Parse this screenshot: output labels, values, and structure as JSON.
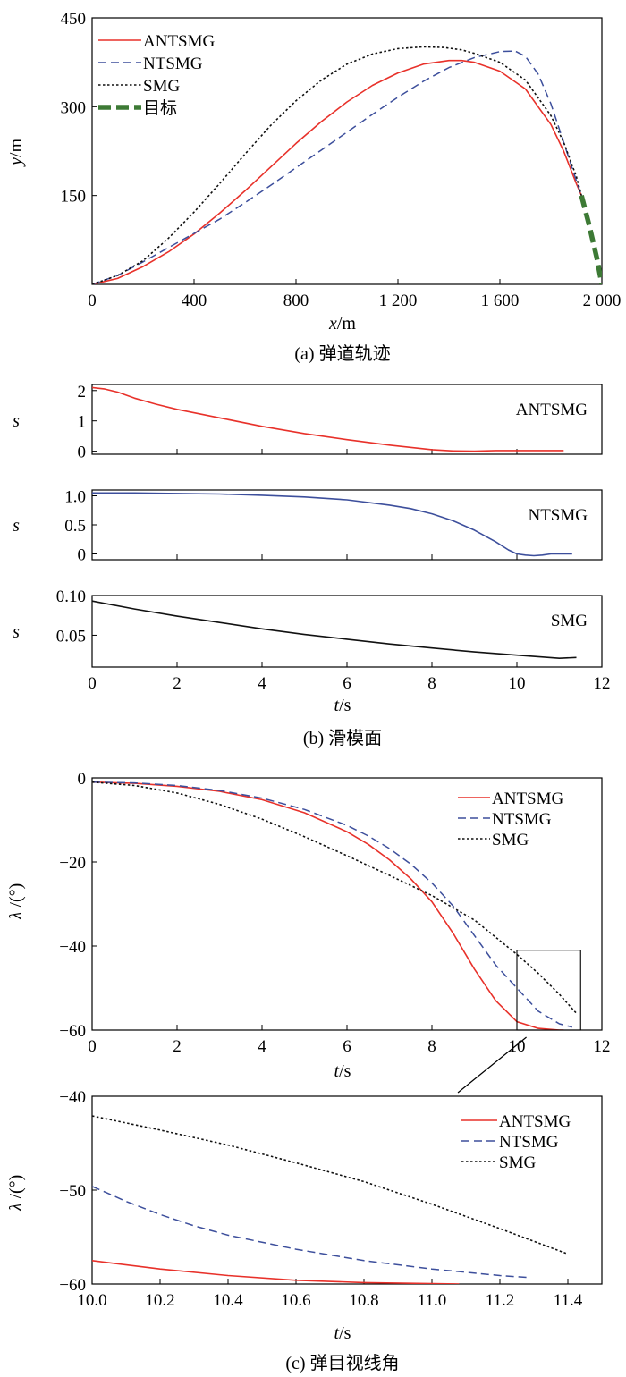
{
  "captions": {
    "a": "(a) 弹道轨迹",
    "b": "(b) 滑模面",
    "c": "(c) 弹目视线角"
  },
  "axis_text": {
    "x_var": "x",
    "x_unit": "/m",
    "y_var": "y",
    "y_unit": "/m",
    "s_var": "s",
    "t_var": "t",
    "t_unit": "/s",
    "lambda_var": "λ",
    "lambda_unit": " /(°)"
  },
  "colors": {
    "ANTSMG": "#e8312a",
    "NTSMG": "#3d4f9c",
    "SMG": "#111111",
    "target": "#3d7a35"
  },
  "chart_data": [
    {
      "id": "a",
      "type": "line",
      "title": "(a) 弹道轨迹",
      "xlabel": "x/m",
      "ylabel": "y/m",
      "xlim": [
        0,
        2000
      ],
      "ylim": [
        0,
        450
      ],
      "xticks": [
        0,
        400,
        800,
        1200,
        1600,
        2000
      ],
      "xtick_labels": [
        "0",
        "400",
        "800",
        "1 200",
        "1 600",
        "2 000"
      ],
      "yticks": [
        150,
        300,
        450
      ],
      "ytick_labels": [
        "150",
        "300",
        "450"
      ],
      "legend": "top-left",
      "series": [
        {
          "name": "ANTSMG",
          "style": "solid",
          "x": [
            0,
            100,
            200,
            300,
            400,
            500,
            600,
            700,
            800,
            900,
            1000,
            1100,
            1200,
            1300,
            1400,
            1450,
            1500,
            1600,
            1700,
            1800,
            1850,
            1900,
            1920
          ],
          "y": [
            0,
            10,
            30,
            55,
            85,
            120,
            158,
            198,
            238,
            275,
            308,
            336,
            357,
            372,
            378,
            378,
            375,
            360,
            330,
            270,
            225,
            170,
            150
          ]
        },
        {
          "name": "NTSMG",
          "style": "dashed",
          "x": [
            0,
            100,
            200,
            300,
            400,
            500,
            600,
            700,
            800,
            900,
            1000,
            1100,
            1200,
            1300,
            1400,
            1500,
            1600,
            1660,
            1700,
            1750,
            1800,
            1850,
            1900,
            1920
          ],
          "y": [
            0,
            15,
            38,
            62,
            86,
            110,
            138,
            167,
            197,
            227,
            257,
            287,
            316,
            343,
            366,
            383,
            393,
            394,
            385,
            355,
            305,
            240,
            175,
            150
          ]
        },
        {
          "name": "SMG",
          "style": "dotted",
          "x": [
            0,
            100,
            200,
            300,
            400,
            500,
            600,
            700,
            800,
            900,
            1000,
            1100,
            1200,
            1300,
            1380,
            1450,
            1500,
            1600,
            1700,
            1800,
            1850,
            1900,
            1920
          ],
          "y": [
            0,
            15,
            40,
            78,
            122,
            170,
            220,
            268,
            310,
            345,
            372,
            389,
            398,
            401,
            400,
            396,
            390,
            375,
            345,
            285,
            240,
            182,
            150
          ]
        },
        {
          "name": "目标",
          "style": "thick-dashed",
          "x": [
            1920,
            1950,
            1980,
            2000
          ],
          "y": [
            150,
            100,
            45,
            0
          ]
        }
      ]
    },
    {
      "id": "b1",
      "type": "line",
      "xlabel": "",
      "ylabel": "s",
      "xlim": [
        0,
        12
      ],
      "ylim": [
        -0.1,
        2.2
      ],
      "yticks": [
        0,
        1,
        2
      ],
      "ytick_labels": [
        "0",
        "1",
        "2"
      ],
      "annotation": "ANTSMG",
      "series": [
        {
          "name": "ANTSMG",
          "x": [
            0,
            0.3,
            0.6,
            1,
            1.5,
            2,
            3,
            4,
            5,
            6,
            7,
            8,
            8.5,
            9,
            9.5,
            10,
            11.1
          ],
          "y": [
            2.1,
            2.05,
            1.95,
            1.75,
            1.55,
            1.38,
            1.1,
            0.82,
            0.58,
            0.38,
            0.2,
            0.05,
            0.01,
            0,
            0.02,
            0.02,
            0.02
          ]
        }
      ]
    },
    {
      "id": "b2",
      "type": "line",
      "xlabel": "",
      "ylabel": "s",
      "xlim": [
        0,
        12
      ],
      "ylim": [
        -0.1,
        1.1
      ],
      "yticks": [
        0,
        0.5,
        1.0
      ],
      "ytick_labels": [
        "0",
        "0.5",
        "1.0"
      ],
      "annotation": "NTSMG",
      "series": [
        {
          "name": "NTSMG",
          "x": [
            0,
            1,
            2,
            3,
            4,
            5,
            6,
            7,
            7.5,
            8,
            8.5,
            9,
            9.5,
            9.8,
            10,
            10.2,
            10.4,
            10.6,
            10.8,
            11,
            11.3
          ],
          "y": [
            1.05,
            1.05,
            1.04,
            1.03,
            1.01,
            0.98,
            0.93,
            0.84,
            0.78,
            0.69,
            0.57,
            0.41,
            0.21,
            0.07,
            0.0,
            -0.02,
            -0.03,
            -0.02,
            0.0,
            0.0,
            0.0
          ]
        }
      ]
    },
    {
      "id": "b3",
      "type": "line",
      "xlabel": "t/s",
      "ylabel": "s",
      "xlim": [
        0,
        12
      ],
      "ylim": [
        0.01,
        0.1
      ],
      "xticks": [
        0,
        2,
        4,
        6,
        8,
        10,
        12
      ],
      "xtick_labels": [
        "0",
        "2",
        "4",
        "6",
        "8",
        "10",
        "12"
      ],
      "yticks": [
        0.05,
        0.1
      ],
      "ytick_labels": [
        "0.05",
        "0.10"
      ],
      "annotation": "SMG",
      "series": [
        {
          "name": "SMG",
          "x": [
            0,
            1,
            2,
            3,
            4,
            5,
            6,
            7,
            8,
            9,
            10,
            11,
            11.4
          ],
          "y": [
            0.093,
            0.083,
            0.074,
            0.066,
            0.058,
            0.051,
            0.045,
            0.039,
            0.034,
            0.029,
            0.025,
            0.021,
            0.022
          ]
        }
      ]
    },
    {
      "id": "c1",
      "type": "line",
      "xlabel": "t/s",
      "ylabel": "λ /(°)",
      "xlim": [
        0,
        12
      ],
      "ylim": [
        -60,
        0
      ],
      "xticks": [
        0,
        2,
        4,
        6,
        8,
        10,
        12
      ],
      "xtick_labels": [
        "0",
        "2",
        "4",
        "6",
        "8",
        "10",
        "12"
      ],
      "yticks": [
        -60,
        -40,
        -20,
        0
      ],
      "ytick_labels": [
        "−60",
        "−40",
        "−20",
        "0"
      ],
      "legend": "top-right",
      "zoom_box": {
        "x": [
          10,
          11.5
        ],
        "y": [
          -60,
          -41
        ]
      },
      "series": [
        {
          "name": "ANTSMG",
          "style": "solid",
          "x": [
            0,
            1,
            2,
            3,
            4,
            5,
            6,
            6.5,
            7,
            7.5,
            8,
            8.5,
            9,
            9.5,
            10,
            10.5,
            11,
            11.1
          ],
          "y": [
            -1,
            -1.3,
            -2,
            -3.2,
            -5.2,
            -8.3,
            -12.8,
            -15.8,
            -19.5,
            -24,
            -29.5,
            -37,
            -45.5,
            -53,
            -58,
            -59.6,
            -60,
            -60
          ]
        },
        {
          "name": "NTSMG",
          "style": "dashed",
          "x": [
            0,
            1,
            2,
            3,
            4,
            5,
            6,
            6.5,
            7,
            7.5,
            8,
            8.5,
            9,
            9.5,
            10,
            10.5,
            11,
            11.3
          ],
          "y": [
            -1,
            -1.2,
            -1.8,
            -3,
            -4.8,
            -7.5,
            -11.3,
            -13.8,
            -16.8,
            -20.5,
            -25,
            -30.5,
            -37.5,
            -44.5,
            -50,
            -55.5,
            -58.5,
            -59.3
          ]
        },
        {
          "name": "SMG",
          "style": "dotted",
          "x": [
            0,
            1,
            2,
            3,
            4,
            5,
            6,
            7,
            8,
            9,
            10,
            10.5,
            11,
            11.4
          ],
          "y": [
            -1,
            -1.8,
            -3.6,
            -6.3,
            -9.8,
            -14,
            -18.5,
            -23.2,
            -28,
            -33.8,
            -42,
            -46.5,
            -51.5,
            -56
          ]
        }
      ]
    },
    {
      "id": "c2",
      "type": "line",
      "xlabel": "t/s",
      "ylabel": "λ /(°)",
      "xlim": [
        10,
        11.5
      ],
      "ylim": [
        -60,
        -40
      ],
      "xticks": [
        10,
        10.2,
        10.4,
        10.6,
        10.8,
        11,
        11.2,
        11.4
      ],
      "xtick_labels": [
        "10.0",
        "10.2",
        "10.4",
        "10.6",
        "10.8",
        "11.0",
        "11.2",
        "11.4"
      ],
      "yticks": [
        -60,
        -50,
        -40
      ],
      "ytick_labels": [
        "−60",
        "−50",
        "−40"
      ],
      "legend": "top-right",
      "series": [
        {
          "name": "ANTSMG",
          "style": "solid",
          "x": [
            10,
            10.2,
            10.4,
            10.6,
            10.8,
            11,
            11.08
          ],
          "y": [
            -57.5,
            -58.4,
            -59.1,
            -59.6,
            -59.85,
            -59.95,
            -60
          ]
        },
        {
          "name": "NTSMG",
          "style": "dashed",
          "x": [
            10,
            10.1,
            10.2,
            10.3,
            10.4,
            10.6,
            10.8,
            11,
            11.2,
            11.28
          ],
          "y": [
            -49.6,
            -51.2,
            -52.6,
            -53.8,
            -54.8,
            -56.3,
            -57.5,
            -58.4,
            -59.1,
            -59.3
          ]
        },
        {
          "name": "SMG",
          "style": "dotted",
          "x": [
            10,
            10.2,
            10.4,
            10.6,
            10.8,
            11,
            11.2,
            11.4
          ],
          "y": [
            -42.1,
            -43.6,
            -45.2,
            -47.1,
            -49.1,
            -51.5,
            -54.1,
            -56.8
          ]
        }
      ]
    }
  ]
}
